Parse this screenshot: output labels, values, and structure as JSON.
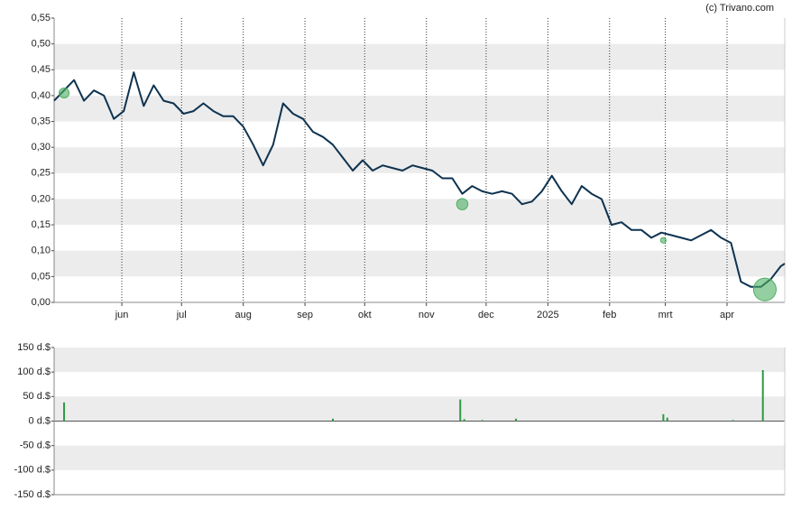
{
  "chart_data": [
    {
      "type": "line",
      "annotation": "(c) Trivano.com",
      "color": "#0e3350",
      "grid": true,
      "xlim": [
        0,
        367
      ],
      "xticks": [
        {
          "value": 34,
          "label": "jun"
        },
        {
          "value": 64,
          "label": "jul"
        },
        {
          "value": 95,
          "label": "aug"
        },
        {
          "value": 126,
          "label": "sep"
        },
        {
          "value": 156,
          "label": "okt"
        },
        {
          "value": 187,
          "label": "nov"
        },
        {
          "value": 217,
          "label": "dec"
        },
        {
          "value": 248,
          "label": "2025"
        },
        {
          "value": 279,
          "label": "feb"
        },
        {
          "value": 307,
          "label": "mrt"
        },
        {
          "value": 338,
          "label": "apr"
        }
      ],
      "ylim": [
        0,
        0.55
      ],
      "yticks": [
        {
          "value": 0,
          "label": "0,00"
        },
        {
          "value": 0.05,
          "label": "0,05"
        },
        {
          "value": 0.1,
          "label": "0,10"
        },
        {
          "value": 0.15,
          "label": "0,15"
        },
        {
          "value": 0.2,
          "label": "0,20"
        },
        {
          "value": 0.25,
          "label": "0,25"
        },
        {
          "value": 0.3,
          "label": "0,30"
        },
        {
          "value": 0.35,
          "label": "0,35"
        },
        {
          "value": 0.4,
          "label": "0,40"
        },
        {
          "value": 0.45,
          "label": "0,45"
        },
        {
          "value": 0.5,
          "label": "0,50"
        },
        {
          "value": 0.55,
          "label": "0,55"
        }
      ],
      "x": [
        0,
        5,
        10,
        15,
        20,
        25,
        30,
        35,
        40,
        45,
        50,
        55,
        60,
        65,
        70,
        75,
        80,
        85,
        90,
        95,
        100,
        105,
        110,
        115,
        120,
        125,
        130,
        135,
        140,
        145,
        150,
        155,
        160,
        165,
        170,
        175,
        180,
        185,
        190,
        195,
        200,
        205,
        210,
        215,
        220,
        225,
        230,
        235,
        240,
        245,
        250,
        255,
        260,
        265,
        270,
        275,
        280,
        285,
        290,
        295,
        300,
        305,
        310,
        315,
        320,
        325,
        330,
        335,
        340,
        345,
        350,
        355,
        360,
        365,
        367
      ],
      "values": [
        0.39,
        0.41,
        0.43,
        0.39,
        0.41,
        0.4,
        0.355,
        0.37,
        0.445,
        0.38,
        0.42,
        0.39,
        0.385,
        0.365,
        0.37,
        0.385,
        0.37,
        0.36,
        0.36,
        0.34,
        0.305,
        0.265,
        0.305,
        0.385,
        0.365,
        0.355,
        0.33,
        0.32,
        0.305,
        0.28,
        0.255,
        0.275,
        0.255,
        0.265,
        0.26,
        0.255,
        0.265,
        0.26,
        0.255,
        0.24,
        0.24,
        0.21,
        0.225,
        0.215,
        0.21,
        0.215,
        0.21,
        0.19,
        0.195,
        0.215,
        0.245,
        0.215,
        0.19,
        0.225,
        0.21,
        0.2,
        0.15,
        0.155,
        0.14,
        0.14,
        0.125,
        0.135,
        0.13,
        0.125,
        0.12,
        0.13,
        0.14,
        0.125,
        0.115,
        0.04,
        0.03,
        0.03,
        0.045,
        0.07,
        0.075
      ],
      "markers": {
        "color": "#4caf63",
        "x": [
          5,
          205,
          306,
          357
        ],
        "values": [
          0.405,
          0.19,
          0.12,
          0.025
        ],
        "sizes": [
          38,
          45,
          15,
          105
        ]
      }
    },
    {
      "type": "bar",
      "color": "#2e9a44",
      "grid": true,
      "xlim": [
        0,
        367
      ],
      "ylim": [
        -150,
        150
      ],
      "yticks": [
        {
          "value": -150,
          "label": "-150 d.$"
        },
        {
          "value": -100,
          "label": "-100 d.$"
        },
        {
          "value": -50,
          "label": "-50 d.$"
        },
        {
          "value": 0,
          "label": "0 d.$"
        },
        {
          "value": 50,
          "label": "50 d.$"
        },
        {
          "value": 100,
          "label": "100 d.$"
        },
        {
          "value": 150,
          "label": "150 d.$"
        }
      ],
      "x": [
        5,
        140,
        204,
        206,
        215,
        232,
        306,
        308,
        341,
        356
      ],
      "values": [
        38,
        5,
        44,
        4,
        2,
        5,
        14,
        7,
        2,
        104
      ]
    }
  ]
}
